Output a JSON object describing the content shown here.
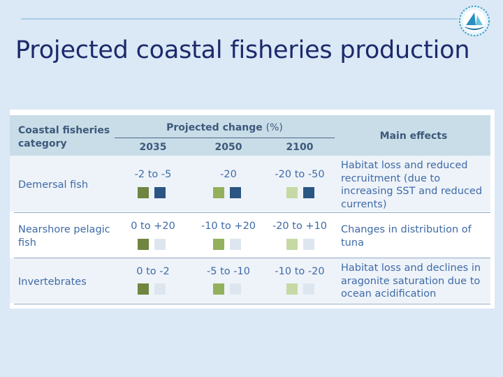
{
  "slide": {
    "title": "Projected coastal fisheries production"
  },
  "table": {
    "headers": {
      "category": "Coastal fisheries category",
      "projected_change": "Projected change",
      "projected_change_unit": "(%)",
      "years": [
        "2035",
        "2050",
        "2100"
      ],
      "main_effects": "Main effects"
    },
    "rows": [
      {
        "category": "Demersal fish",
        "values": [
          "-2 to -5",
          "-20",
          "-20 to -50"
        ],
        "effects": "Habitat loss and reduced recruitment (due to increasing SST and reduced currents)",
        "squares": [
          [
            "olive",
            "navy"
          ],
          [
            "mid_green",
            "navy"
          ],
          [
            "pale_green",
            "navy"
          ]
        ]
      },
      {
        "category": "Nearshore pelagic fish",
        "values": [
          "0 to +20",
          "-10 to +20",
          "-20 to +10"
        ],
        "effects": "Changes in distribution of tuna",
        "squares": [
          [
            "olive",
            "light_grey"
          ],
          [
            "mid_green",
            "light_grey"
          ],
          [
            "pale_green",
            "light_grey"
          ]
        ]
      },
      {
        "category": "Invertebrates",
        "values": [
          "0 to -2",
          "-5 to -10",
          "-10 to -20"
        ],
        "effects": "Habitat loss and declines in aragonite saturation due to ocean acidification",
        "squares": [
          [
            "olive",
            "light_grey"
          ],
          [
            "mid_green",
            "light_grey"
          ],
          [
            "pale_green",
            "light_grey"
          ]
        ]
      }
    ]
  },
  "colors": {
    "olive": "#6f8540",
    "mid_green": "#93b05c",
    "pale_green": "#c6d9a4",
    "navy": "#2b5582",
    "light_grey": "#dde6ef",
    "title": "#1c2a6b",
    "body_text": "#3f6aa6",
    "header_text": "#3d5a7a"
  }
}
